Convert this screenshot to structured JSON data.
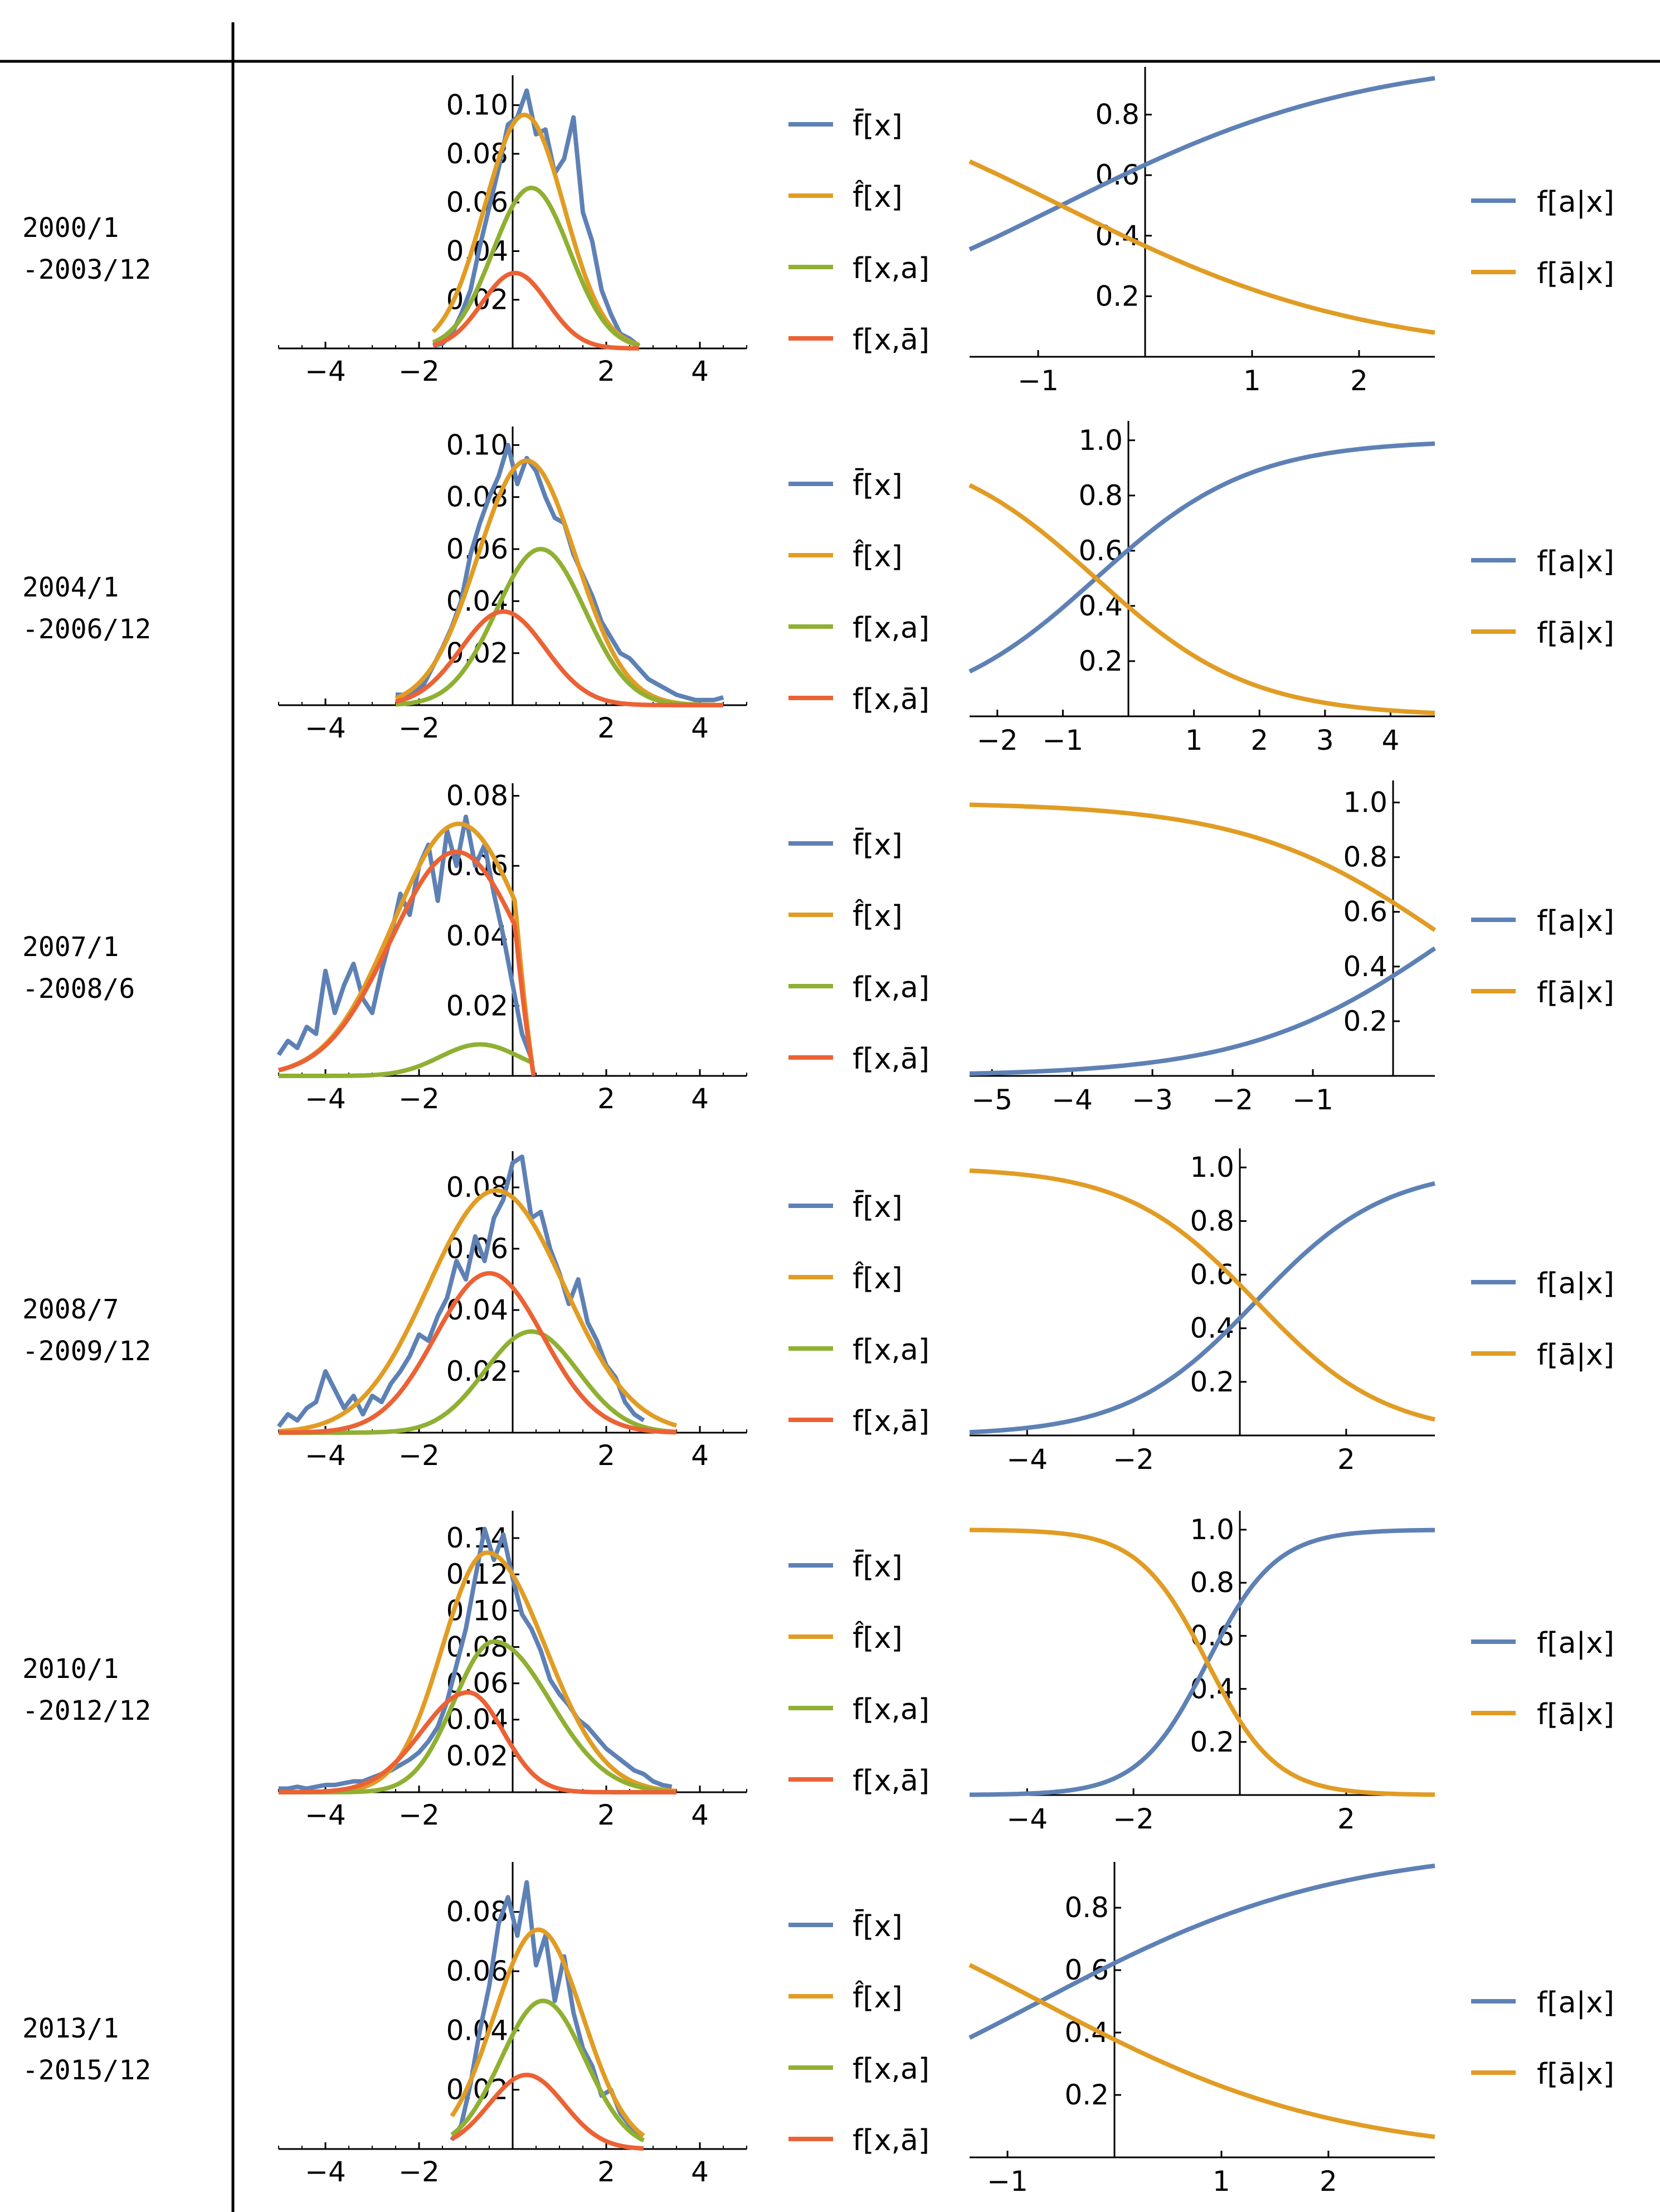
{
  "colors": {
    "blue": "#5E81B5",
    "orange": "#E19C24",
    "green": "#8FB032",
    "red": "#EB6235",
    "axis": "#000000"
  },
  "chart_data": [
    {
      "period": [
        "2000/1",
        "-2003/12"
      ],
      "density": {
        "type": "line",
        "xlim": [
          -5,
          5
        ],
        "ylim": [
          0,
          0.11
        ],
        "xticks": [
          "-4",
          "-2",
          "2",
          "4"
        ],
        "yticks": [
          "0.02",
          "0.04",
          "0.06",
          "0.08",
          "0.10"
        ],
        "legend": [
          "f̄[x]",
          "f̂[x]",
          "f[x,a]",
          "f[x,ā]"
        ],
        "empirical": {
          "x": [
            -1.7,
            -1.5,
            -1.3,
            -1.1,
            -0.9,
            -0.7,
            -0.5,
            -0.3,
            -0.1,
            0.1,
            0.3,
            0.5,
            0.7,
            0.9,
            1.1,
            1.3,
            1.5,
            1.7,
            1.9,
            2.1,
            2.3,
            2.5,
            2.7
          ],
          "y": [
            0.001,
            0.002,
            0.006,
            0.014,
            0.024,
            0.042,
            0.058,
            0.074,
            0.092,
            0.095,
            0.106,
            0.088,
            0.09,
            0.072,
            0.078,
            0.095,
            0.056,
            0.044,
            0.024,
            0.014,
            0.006,
            0.004,
            0.001
          ]
        },
        "curves": [
          {
            "name": "fhat",
            "mu": 0.25,
            "sigma": 0.85,
            "peak": 0.096,
            "range": [
              -1.7,
              2.7
            ]
          },
          {
            "name": "fxa",
            "mu": 0.4,
            "sigma": 0.82,
            "peak": 0.066,
            "range": [
              -1.7,
              2.7
            ]
          },
          {
            "name": "fxabar",
            "mu": 0.05,
            "sigma": 0.7,
            "peak": 0.031,
            "range": [
              -1.7,
              2.7
            ]
          }
        ]
      },
      "conditional": {
        "xlim": [
          -1.5,
          2.85
        ],
        "ylim": [
          0,
          0.93
        ],
        "xticks": [
          -1,
          1,
          2
        ],
        "yticks": [
          0.2,
          0.4,
          0.6,
          0.8
        ],
        "logistic": {
          "a": 0.55,
          "b": 0.7
        },
        "legend": [
          "f[a|x]",
          "f[ā|x]"
        ]
      }
    },
    {
      "period": [
        "2004/1",
        "-2006/12"
      ],
      "density": {
        "type": "line",
        "xlim": [
          -5,
          5
        ],
        "ylim": [
          0,
          0.105
        ],
        "xticks": [
          "-4",
          "-2",
          "2",
          "4"
        ],
        "yticks": [
          "0.02",
          "0.04",
          "0.06",
          "0.08",
          "0.10"
        ],
        "legend": [
          "f̄[x]",
          "f̂[x]",
          "f[x,a]",
          "f[x,ā]"
        ],
        "empirical": {
          "x": [
            -2.5,
            -2.3,
            -2.1,
            -1.9,
            -1.7,
            -1.5,
            -1.3,
            -1.1,
            -0.9,
            -0.7,
            -0.5,
            -0.3,
            -0.1,
            0.1,
            0.3,
            0.5,
            0.7,
            0.9,
            1.1,
            1.3,
            1.5,
            1.7,
            1.9,
            2.1,
            2.3,
            2.5,
            2.7,
            2.9,
            3.1,
            3.3,
            3.5,
            3.7,
            3.9,
            4.1,
            4.3,
            4.5
          ],
          "y": [
            0.004,
            0.004,
            0.005,
            0.008,
            0.015,
            0.022,
            0.03,
            0.04,
            0.058,
            0.07,
            0.08,
            0.088,
            0.1,
            0.085,
            0.095,
            0.09,
            0.08,
            0.072,
            0.07,
            0.058,
            0.05,
            0.042,
            0.032,
            0.026,
            0.02,
            0.018,
            0.014,
            0.01,
            0.008,
            0.006,
            0.004,
            0.003,
            0.002,
            0.002,
            0.002,
            0.003
          ]
        },
        "curves": [
          {
            "name": "fhat",
            "mu": 0.3,
            "sigma": 1.05,
            "peak": 0.094,
            "range": [
              -2.5,
              4.5
            ]
          },
          {
            "name": "fxa",
            "mu": 0.6,
            "sigma": 0.95,
            "peak": 0.06,
            "range": [
              -2.5,
              4.5
            ]
          },
          {
            "name": "fxabar",
            "mu": -0.2,
            "sigma": 0.9,
            "peak": 0.036,
            "range": [
              -2.5,
              4.5
            ]
          }
        ]
      },
      "conditional": {
        "xlim": [
          -2.5,
          4.6
        ],
        "ylim": [
          0,
          1.04
        ],
        "xticks": [
          -2,
          -1,
          1,
          2,
          3,
          4
        ],
        "yticks": [
          0.2,
          0.4,
          0.6,
          0.8,
          1.0
        ],
        "logistic": {
          "a": 0.42,
          "b": 0.85
        },
        "legend": [
          "f[a|x]",
          "f[ā|x]"
        ]
      }
    },
    {
      "period": [
        "2007/1",
        "-2008/6"
      ],
      "density": {
        "type": "line",
        "xlim": [
          -5,
          5
        ],
        "ylim": [
          0,
          0.082
        ],
        "xticks": [
          "-4",
          "-2",
          "2",
          "4"
        ],
        "yticks": [
          "0.02",
          "0.04",
          "0.06",
          "0.08"
        ],
        "legend": [
          "f̄[x]",
          "f̂[x]",
          "f[x,a]",
          "f[x,ā]"
        ],
        "empirical": {
          "x": [
            -5.0,
            -4.8,
            -4.6,
            -4.4,
            -4.2,
            -4.0,
            -3.8,
            -3.6,
            -3.4,
            -3.2,
            -3.0,
            -2.8,
            -2.6,
            -2.4,
            -2.2,
            -2.0,
            -1.8,
            -1.6,
            -1.4,
            -1.2,
            -1.0,
            -0.8,
            -0.6,
            -0.4,
            -0.2,
            0.0,
            0.2,
            0.4
          ],
          "y": [
            0.006,
            0.01,
            0.008,
            0.014,
            0.012,
            0.03,
            0.018,
            0.026,
            0.032,
            0.022,
            0.018,
            0.03,
            0.04,
            0.052,
            0.046,
            0.06,
            0.066,
            0.05,
            0.07,
            0.06,
            0.074,
            0.06,
            0.066,
            0.052,
            0.04,
            0.026,
            0.012,
            0.005
          ]
        },
        "curves": [
          {
            "name": "fhat",
            "mu": -1.15,
            "sigma": 1.4,
            "peak": 0.072,
            "range": [
              -5.0,
              0.45
            ],
            "rightCut": 0.45
          },
          {
            "name": "fxa",
            "mu": -0.7,
            "sigma": 0.85,
            "peak": 0.009,
            "range": [
              -5.0,
              0.45
            ]
          },
          {
            "name": "fxabar",
            "mu": -1.2,
            "sigma": 1.4,
            "peak": 0.064,
            "range": [
              -5.0,
              0.45
            ],
            "rightCut": 0.45
          }
        ]
      },
      "conditional": {
        "xlim": [
          -5.3,
          0.5
        ],
        "ylim": [
          0,
          1.05
        ],
        "xticks": [
          -5,
          -4,
          -3,
          -2,
          -1
        ],
        "yticks": [
          0.2,
          0.4,
          0.6,
          0.8,
          1.0
        ],
        "logistic": {
          "a": -0.55,
          "b": 0.8
        },
        "legend": [
          "f[a|x]",
          "f[ā|x]"
        ]
      }
    },
    {
      "period": [
        "2008/7",
        "-2009/12"
      ],
      "density": {
        "type": "line",
        "xlim": [
          -5,
          5
        ],
        "ylim": [
          0,
          0.09
        ],
        "xticks": [
          "-4",
          "-2",
          "2",
          "4"
        ],
        "yticks": [
          "0.02",
          "0.04",
          "0.06",
          "0.08"
        ],
        "legend": [
          "f̄[x]",
          "f̂[x]",
          "f[x,a]",
          "f[x,ā]"
        ],
        "empirical": {
          "x": [
            -5.0,
            -4.8,
            -4.6,
            -4.4,
            -4.2,
            -4.0,
            -3.8,
            -3.6,
            -3.4,
            -3.2,
            -3.0,
            -2.8,
            -2.6,
            -2.4,
            -2.2,
            -2.0,
            -1.8,
            -1.6,
            -1.4,
            -1.2,
            -1.0,
            -0.8,
            -0.6,
            -0.4,
            -0.2,
            0.0,
            0.2,
            0.4,
            0.6,
            0.8,
            1.0,
            1.2,
            1.4,
            1.6,
            1.8,
            2.0,
            2.2,
            2.4,
            2.6,
            2.8
          ],
          "y": [
            0.002,
            0.006,
            0.004,
            0.008,
            0.01,
            0.02,
            0.014,
            0.008,
            0.012,
            0.006,
            0.012,
            0.01,
            0.016,
            0.02,
            0.025,
            0.032,
            0.03,
            0.038,
            0.044,
            0.056,
            0.05,
            0.064,
            0.056,
            0.07,
            0.076,
            0.088,
            0.09,
            0.07,
            0.072,
            0.06,
            0.052,
            0.042,
            0.05,
            0.036,
            0.03,
            0.022,
            0.018,
            0.01,
            0.006,
            0.004
          ]
        },
        "curves": [
          {
            "name": "fhat",
            "mu": -0.35,
            "sigma": 1.45,
            "peak": 0.079,
            "range": [
              -5.0,
              3.5
            ]
          },
          {
            "name": "fxa",
            "mu": 0.4,
            "sigma": 1.0,
            "peak": 0.033,
            "range": [
              -5.0,
              3.5
            ]
          },
          {
            "name": "fxabar",
            "mu": -0.5,
            "sigma": 1.15,
            "peak": 0.052,
            "range": [
              -5.0,
              3.5
            ]
          }
        ]
      },
      "conditional": {
        "xlim": [
          -5.0,
          3.75
        ],
        "ylim": [
          0,
          1.04
        ],
        "xticks": [
          -4,
          -2,
          2
        ],
        "yticks": [
          0.2,
          0.4,
          0.6,
          0.8,
          1.0
        ],
        "logistic": {
          "a": -0.25,
          "b": 0.82
        },
        "legend": [
          "f[a|x]",
          "f[ā|x]"
        ]
      }
    },
    {
      "period": [
        "2010/1",
        "-2012/12"
      ],
      "density": {
        "type": "line",
        "xlim": [
          -5,
          5
        ],
        "ylim": [
          0,
          0.152
        ],
        "xticks": [
          "-4",
          "-2",
          "2",
          "4"
        ],
        "yticks": [
          "0.02",
          "0.04",
          "0.06",
          "0.08",
          "0.10",
          "0.12",
          "0.14"
        ],
        "legend": [
          "f̄[x]",
          "f̂[x]",
          "f[x,a]",
          "f[x,ā]"
        ],
        "empirical": {
          "x": [
            -5.0,
            -4.8,
            -4.6,
            -4.4,
            -4.2,
            -4.0,
            -3.8,
            -3.6,
            -3.4,
            -3.2,
            -3.0,
            -2.8,
            -2.6,
            -2.4,
            -2.2,
            -2.0,
            -1.8,
            -1.6,
            -1.4,
            -1.2,
            -1.0,
            -0.8,
            -0.6,
            -0.4,
            -0.2,
            0.0,
            0.2,
            0.4,
            0.6,
            0.8,
            1.0,
            1.2,
            1.4,
            1.6,
            1.8,
            2.0,
            2.2,
            2.4,
            2.6,
            2.8,
            3.0,
            3.2,
            3.4
          ],
          "y": [
            0.002,
            0.002,
            0.003,
            0.002,
            0.003,
            0.004,
            0.004,
            0.005,
            0.006,
            0.006,
            0.008,
            0.01,
            0.012,
            0.015,
            0.018,
            0.022,
            0.028,
            0.036,
            0.05,
            0.07,
            0.09,
            0.118,
            0.145,
            0.128,
            0.142,
            0.118,
            0.098,
            0.09,
            0.078,
            0.062,
            0.054,
            0.048,
            0.04,
            0.036,
            0.03,
            0.024,
            0.02,
            0.016,
            0.012,
            0.01,
            0.006,
            0.004,
            0.003
          ]
        },
        "curves": [
          {
            "name": "fhat",
            "mu": -0.55,
            "sigma": 0.9,
            "peak": 0.132,
            "range": [
              -5.0,
              3.5
            ],
            "leftSigma": 0.95,
            "rightSigma": 1.25
          },
          {
            "name": "fxa",
            "mu": -0.4,
            "sigma": 0.9,
            "peak": 0.083,
            "range": [
              -5.0,
              3.5
            ],
            "leftSigma": 0.85,
            "rightSigma": 1.2
          },
          {
            "name": "fxabar",
            "mu": -0.95,
            "sigma": 0.8,
            "peak": 0.055,
            "range": [
              -5.0,
              3.5
            ],
            "leftSigma": 1.0,
            "rightSigma": 0.75
          }
        ]
      },
      "conditional": {
        "xlim": [
          -5.0,
          3.75
        ],
        "ylim": [
          0,
          1.04
        ],
        "xticks": [
          -4,
          -2,
          2
        ],
        "yticks": [
          0.2,
          0.4,
          0.6,
          0.8,
          1.0
        ],
        "logistic": {
          "a": 0.95,
          "b": 1.55
        },
        "legend": [
          "f[a|x]",
          "f[ā|x]"
        ]
      }
    },
    {
      "period": [
        "2013/1",
        "-2015/12"
      ],
      "density": {
        "type": "line",
        "xlim": [
          -5,
          5
        ],
        "ylim": [
          0,
          0.095
        ],
        "xticks": [
          "-4",
          "-2",
          "2",
          "4"
        ],
        "yticks": [
          "0.02",
          "0.04",
          "0.06",
          "0.08"
        ],
        "legend": [
          "f̄[x]",
          "f̂[x]",
          "f[x,a]",
          "f[x,ā]"
        ],
        "empirical": {
          "x": [
            -1.3,
            -1.1,
            -0.9,
            -0.7,
            -0.5,
            -0.3,
            -0.1,
            0.1,
            0.3,
            0.5,
            0.7,
            0.9,
            1.1,
            1.3,
            1.5,
            1.7,
            1.9,
            2.1,
            2.3,
            2.5,
            2.7
          ],
          "y": [
            0.003,
            0.008,
            0.022,
            0.04,
            0.055,
            0.076,
            0.085,
            0.072,
            0.09,
            0.062,
            0.072,
            0.05,
            0.065,
            0.046,
            0.034,
            0.028,
            0.018,
            0.02,
            0.012,
            0.008,
            0.004
          ]
        },
        "curves": [
          {
            "name": "fhat",
            "mu": 0.55,
            "sigma": 0.95,
            "peak": 0.074,
            "range": [
              -1.3,
              2.8
            ]
          },
          {
            "name": "fxa",
            "mu": 0.65,
            "sigma": 0.9,
            "peak": 0.05,
            "range": [
              -1.3,
              2.8
            ]
          },
          {
            "name": "fxabar",
            "mu": 0.3,
            "sigma": 0.8,
            "peak": 0.025,
            "range": [
              -1.3,
              2.8
            ]
          }
        ]
      },
      "conditional": {
        "xlim": [
          -1.3,
          3.05
        ],
        "ylim": [
          0,
          0.92
        ],
        "xticks": [
          -1,
          1,
          2
        ],
        "yticks": [
          0.2,
          0.4,
          0.6,
          0.8
        ],
        "logistic": {
          "a": 0.5,
          "b": 0.72
        },
        "legend": [
          "f[a|x]",
          "f[ā|x]"
        ]
      }
    }
  ]
}
